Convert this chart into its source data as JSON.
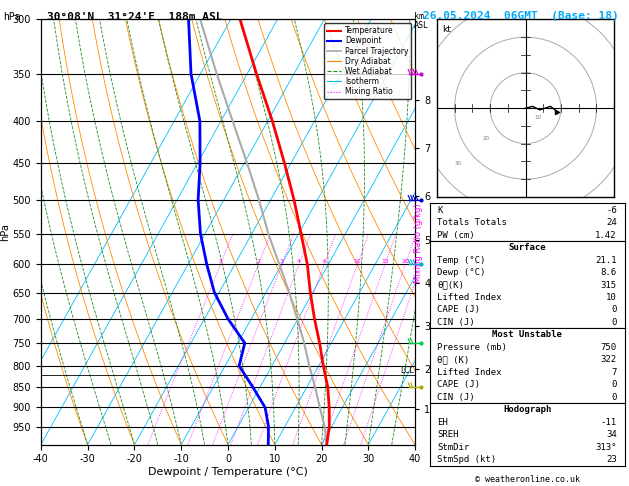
{
  "title_left": "30°08'N  31°24'E  188m ASL",
  "title_right": "26.05.2024  06GMT  (Base: 18)",
  "xlabel": "Dewpoint / Temperature (°C)",
  "ylabel_left": "hPa",
  "pres_levels": [
    300,
    350,
    400,
    450,
    500,
    550,
    600,
    650,
    700,
    750,
    800,
    850,
    900,
    950
  ],
  "pres_min": 300,
  "pres_max": 1000,
  "t_min": -40,
  "t_max": 40,
  "skew": 42.0,
  "km_ticks": [
    1,
    2,
    3,
    4,
    5,
    6,
    7,
    8
  ],
  "km_pressures": [
    905,
    808,
    715,
    633,
    560,
    495,
    432,
    377
  ],
  "temp_profile_p": [
    1000,
    950,
    900,
    850,
    800,
    750,
    700,
    650,
    600,
    550,
    500,
    450,
    400,
    350,
    300
  ],
  "temp_profile_t": [
    21.1,
    19.5,
    17.2,
    14.5,
    11.0,
    7.5,
    3.5,
    -0.5,
    -4.5,
    -9.5,
    -15.0,
    -21.5,
    -29.0,
    -38.0,
    -48.0
  ],
  "dewp_profile_p": [
    1000,
    950,
    900,
    850,
    800,
    750,
    700,
    650,
    600,
    550,
    500,
    450,
    400,
    350,
    300
  ],
  "dewp_profile_t": [
    8.6,
    6.5,
    3.5,
    -1.5,
    -7.0,
    -8.5,
    -15.0,
    -21.0,
    -26.0,
    -31.0,
    -35.5,
    -39.5,
    -44.5,
    -52.0,
    -59.0
  ],
  "parcel_p": [
    1000,
    950,
    900,
    850,
    800,
    750,
    700,
    650,
    600,
    550,
    500,
    450,
    400,
    350,
    300
  ],
  "parcel_t": [
    21.1,
    18.5,
    15.2,
    11.8,
    8.0,
    4.2,
    -0.2,
    -5.0,
    -10.5,
    -16.5,
    -22.5,
    -29.5,
    -37.5,
    -46.5,
    -56.5
  ],
  "lcl_pressure": 822,
  "mixing_ratios": [
    1,
    2,
    3,
    4,
    6,
    10,
    15,
    20,
    25
  ],
  "colors": {
    "temperature": "#ff0000",
    "dewpoint": "#0000ff",
    "parcel": "#aaaaaa",
    "dry_adiabat": "#ff8c00",
    "wet_adiabat": "#228b22",
    "isotherm": "#00bfff",
    "mixing_ratio": "#ff00ff",
    "background": "#ffffff"
  },
  "stats": {
    "K": "-6",
    "Totals_Totals": "24",
    "PW_cm": "1.42",
    "Surface_Temp": "21.1",
    "Surface_Dewp": "8.6",
    "Surface_thetae": "315",
    "Surface_LI": "10",
    "Surface_CAPE": "0",
    "Surface_CIN": "0",
    "MU_Pressure": "750",
    "MU_thetae": "322",
    "MU_LI": "7",
    "MU_CAPE": "0",
    "MU_CIN": "0",
    "EH": "-11",
    "SREH": "34",
    "StmDir": "313°",
    "StmSpd": "23"
  },
  "wind_barbs": [
    {
      "p": 350,
      "color": "#cc00cc",
      "u": -15,
      "v": 5
    },
    {
      "p": 500,
      "color": "#0000cc",
      "u": -10,
      "v": 3
    },
    {
      "p": 600,
      "color": "#00aacc",
      "u": -5,
      "v": 2
    },
    {
      "p": 750,
      "color": "#00cc44",
      "u": 3,
      "v": -2
    },
    {
      "p": 850,
      "color": "#cccc00",
      "u": 5,
      "v": -3
    }
  ]
}
